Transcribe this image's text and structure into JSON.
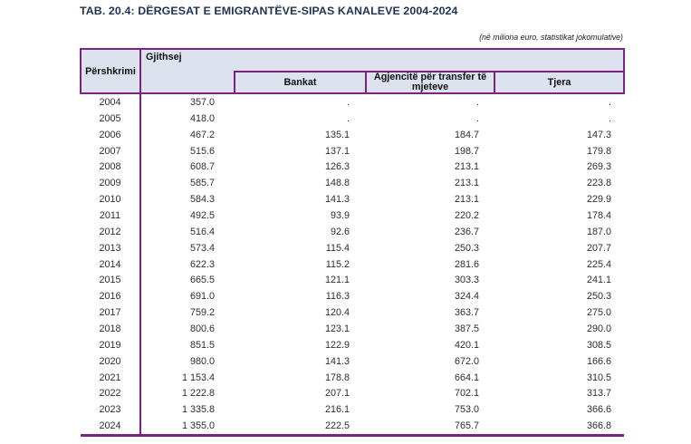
{
  "page": {
    "title": "TAB. 20.4: DËRGESAT E EMIGRANTËVE-SIPAS KANALEVE 2004-2024",
    "subtitle": "(në miliona euro, statistikat jokomulative)"
  },
  "colors": {
    "border_purple": "#7c2282",
    "header_background": "#dce3ef",
    "title_text": "#1f3352",
    "body_text": "#2e2e2e"
  },
  "table": {
    "headers": {
      "col_description": "Përshkrimi",
      "col_total": "Gjithsej",
      "col_banks": "Bankat",
      "col_agencies": "Agjencitë për transfer të mjeteve",
      "col_other": "Tjera"
    },
    "rows": [
      {
        "year": "2004",
        "total": "357.0",
        "banks": ".",
        "agencies": ".",
        "other": "."
      },
      {
        "year": "2005",
        "total": "418.0",
        "banks": ".",
        "agencies": ".",
        "other": "."
      },
      {
        "year": "2006",
        "total": "467.2",
        "banks": "135.1",
        "agencies": "184.7",
        "other": "147.3"
      },
      {
        "year": "2007",
        "total": "515.6",
        "banks": "137.1",
        "agencies": "198.7",
        "other": "179.8"
      },
      {
        "year": "2008",
        "total": "608.7",
        "banks": "126.3",
        "agencies": "213.1",
        "other": "269.3"
      },
      {
        "year": "2009",
        "total": "585.7",
        "banks": "148.8",
        "agencies": "213.1",
        "other": "223.8"
      },
      {
        "year": "2010",
        "total": "584.3",
        "banks": "141.3",
        "agencies": "213.1",
        "other": "229.9"
      },
      {
        "year": "2011",
        "total": "492.5",
        "banks": "93.9",
        "agencies": "220.2",
        "other": "178.4"
      },
      {
        "year": "2012",
        "total": "516.4",
        "banks": "92.6",
        "agencies": "236.7",
        "other": "187.0"
      },
      {
        "year": "2013",
        "total": "573.4",
        "banks": "115.4",
        "agencies": "250.3",
        "other": "207.7"
      },
      {
        "year": "2014",
        "total": "622.3",
        "banks": "115.2",
        "agencies": "281.6",
        "other": "225.4"
      },
      {
        "year": "2015",
        "total": "665.5",
        "banks": "121.1",
        "agencies": "303.3",
        "other": "241.1"
      },
      {
        "year": "2016",
        "total": "691.0",
        "banks": "116.3",
        "agencies": "324.4",
        "other": "250.3"
      },
      {
        "year": "2017",
        "total": "759.2",
        "banks": "120.4",
        "agencies": "363.7",
        "other": "275.0"
      },
      {
        "year": "2018",
        "total": "800.6",
        "banks": "123.1",
        "agencies": "387.5",
        "other": "290.0"
      },
      {
        "year": "2019",
        "total": "851.5",
        "banks": "122.9",
        "agencies": "420.1",
        "other": "308.5"
      },
      {
        "year": "2020",
        "total": "980.0",
        "banks": "141.3",
        "agencies": "672.0",
        "other": "166.6"
      },
      {
        "year": "2021",
        "total": "1 153.4",
        "banks": "178.8",
        "agencies": "664.1",
        "other": "310.5"
      },
      {
        "year": "2022",
        "total": "1 222.8",
        "banks": "207.1",
        "agencies": "702.1",
        "other": "313.7"
      },
      {
        "year": "2023",
        "total": "1 335.8",
        "banks": "216.1",
        "agencies": "753.0",
        "other": "366.6"
      },
      {
        "year": "2024",
        "total": "1 355.0",
        "banks": "222.5",
        "agencies": "765.7",
        "other": "366.8"
      }
    ]
  }
}
